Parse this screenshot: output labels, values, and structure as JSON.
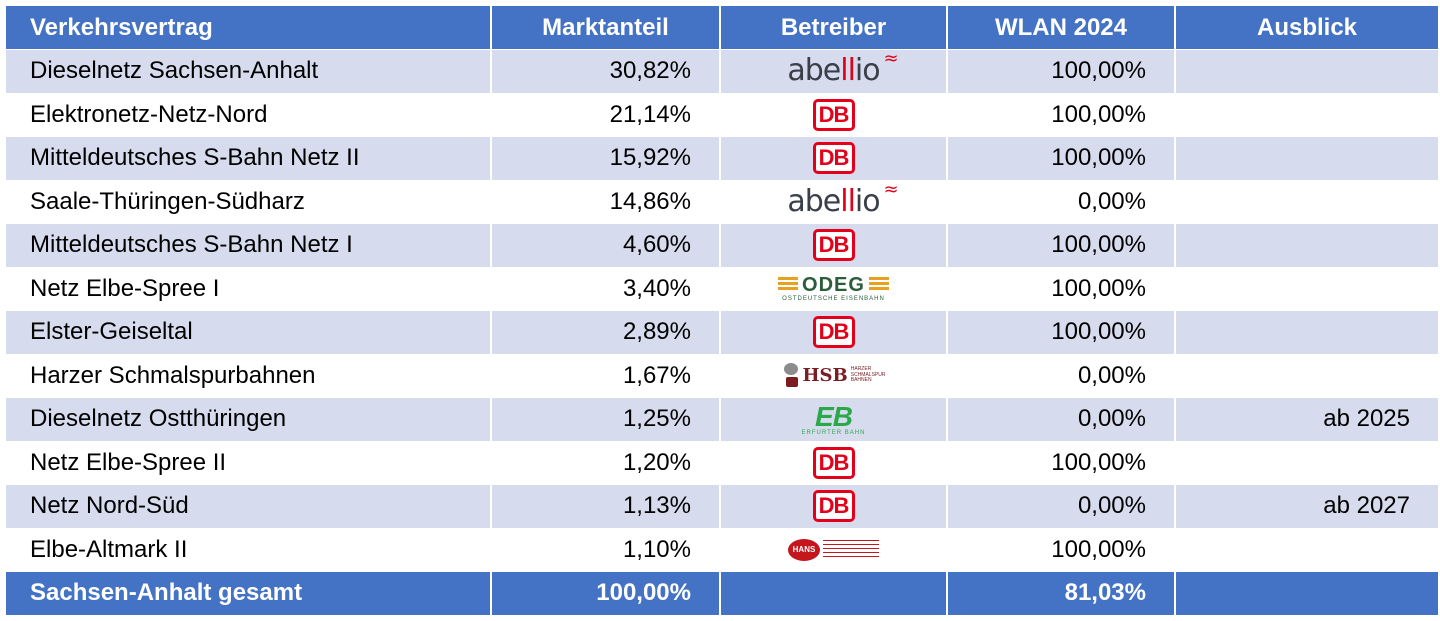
{
  "table": {
    "headers": {
      "col1": "Verkehrsvertrag",
      "col2": "Marktanteil",
      "col3": "Betreiber",
      "col4": "WLAN 2024",
      "col5": "Ausblick"
    },
    "rows": [
      {
        "vertrag": "Dieselnetz Sachsen-Anhalt",
        "anteil": "30,82%",
        "betreiber": "abellio",
        "wlan": "100,00%",
        "ausblick": ""
      },
      {
        "vertrag": "Elektronetz-Netz-Nord",
        "anteil": "21,14%",
        "betreiber": "DB",
        "wlan": "100,00%",
        "ausblick": ""
      },
      {
        "vertrag": "Mitteldeutsches S-Bahn Netz II",
        "anteil": "15,92%",
        "betreiber": "DB",
        "wlan": "100,00%",
        "ausblick": ""
      },
      {
        "vertrag": "Saale-Thüringen-Südharz",
        "anteil": "14,86%",
        "betreiber": "abellio",
        "wlan": "0,00%",
        "ausblick": ""
      },
      {
        "vertrag": "Mitteldeutsches S-Bahn Netz I",
        "anteil": "4,60%",
        "betreiber": "DB",
        "wlan": "100,00%",
        "ausblick": ""
      },
      {
        "vertrag": "Netz Elbe-Spree I",
        "anteil": "3,40%",
        "betreiber": "ODEG",
        "wlan": "100,00%",
        "ausblick": ""
      },
      {
        "vertrag": "Elster-Geiseltal",
        "anteil": "2,89%",
        "betreiber": "DB",
        "wlan": "100,00%",
        "ausblick": ""
      },
      {
        "vertrag": "Harzer Schmalspurbahnen",
        "anteil": "1,67%",
        "betreiber": "HSB",
        "wlan": "0,00%",
        "ausblick": ""
      },
      {
        "vertrag": "Dieselnetz Ostthüringen",
        "anteil": "1,25%",
        "betreiber": "EB",
        "wlan": "0,00%",
        "ausblick": "ab 2025"
      },
      {
        "vertrag": "Netz Elbe-Spree II",
        "anteil": "1,20%",
        "betreiber": "DB",
        "wlan": "100,00%",
        "ausblick": ""
      },
      {
        "vertrag": "Netz Nord-Süd",
        "anteil": "1,13%",
        "betreiber": "DB",
        "wlan": "0,00%",
        "ausblick": "ab 2027"
      },
      {
        "vertrag": "Elbe-Altmark II",
        "anteil": "1,10%",
        "betreiber": "HANS",
        "wlan": "100,00%",
        "ausblick": ""
      }
    ],
    "footer": {
      "vertrag": "Sachsen-Anhalt gesamt",
      "anteil": "100,00%",
      "betreiber": "",
      "wlan": "81,03%",
      "ausblick": ""
    }
  },
  "logos": {
    "db": "DB",
    "abellio": {
      "pre": "abe",
      "ll": "ll",
      "post": "io"
    },
    "odeg": {
      "wordmark": "ODEG",
      "sub": "OSTDEUTSCHE EISENBAHN"
    },
    "hsb": {
      "wordmark": "HSB",
      "small1": "HARZER",
      "small2": "SCHMALSPUR",
      "small3": "BAHNEN"
    },
    "eb": {
      "wordmark": "EB",
      "sub": "ERFURTER BAHN"
    },
    "hans": {
      "wordmark": "HANS"
    }
  },
  "colors": {
    "header_bg": "#4472c4",
    "band_bg": "#d6dced",
    "db_red": "#e2001a"
  }
}
